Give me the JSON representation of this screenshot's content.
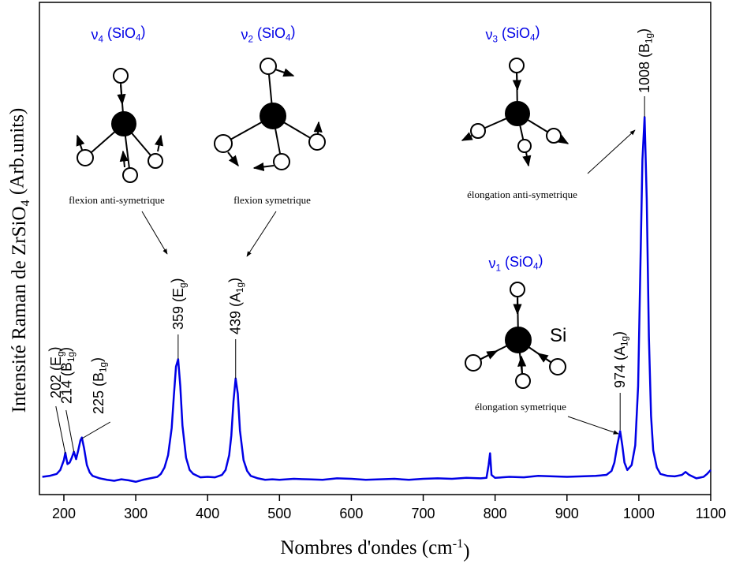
{
  "chart_data": {
    "type": "line",
    "xlabel": [
      "Nombres d'ondes (cm",
      {
        "sup": "-1"
      },
      ")"
    ],
    "ylabel": [
      "Intensité Raman de ZrSiO",
      {
        "sub": "4"
      },
      " (Arb.units)"
    ],
    "xlim": [
      166,
      1100
    ],
    "ylim": [
      0,
      100
    ],
    "xticks": [
      200,
      300,
      400,
      500,
      600,
      700,
      800,
      900,
      1000,
      1100
    ],
    "x": [
      170,
      180,
      190,
      195,
      200,
      202,
      205,
      208,
      211,
      214,
      217,
      220,
      223,
      225,
      228,
      232,
      236,
      240,
      250,
      260,
      270,
      280,
      290,
      300,
      310,
      320,
      330,
      335,
      340,
      345,
      350,
      353,
      356,
      359,
      362,
      365,
      370,
      375,
      380,
      390,
      400,
      410,
      420,
      425,
      430,
      433,
      436,
      439,
      442,
      445,
      450,
      455,
      460,
      470,
      480,
      490,
      500,
      520,
      540,
      560,
      580,
      600,
      620,
      640,
      660,
      680,
      700,
      720,
      740,
      760,
      780,
      788,
      791,
      793,
      795,
      800,
      820,
      840,
      860,
      880,
      900,
      920,
      940,
      955,
      962,
      966,
      970,
      974,
      977,
      980,
      984,
      990,
      995,
      999,
      1002,
      1005,
      1008,
      1011,
      1014,
      1017,
      1020,
      1025,
      1030,
      1040,
      1050,
      1060,
      1065,
      1070,
      1080,
      1090,
      1095,
      1100
    ],
    "series": [
      {
        "color": "#0000e6",
        "values": [
          3.6,
          3.8,
          4.2,
          5.0,
          7.0,
          8.5,
          6.2,
          6.5,
          7.5,
          8.7,
          7.2,
          9.0,
          11.0,
          11.6,
          9.5,
          6.0,
          4.5,
          3.8,
          3.3,
          3.0,
          2.8,
          3.1,
          2.9,
          2.6,
          3.0,
          3.3,
          3.6,
          4.2,
          5.5,
          8.0,
          13.5,
          20.0,
          26.0,
          27.5,
          22.0,
          14.0,
          7.5,
          5.0,
          4.2,
          3.5,
          3.6,
          3.5,
          4.0,
          5.0,
          8.0,
          12.0,
          19.0,
          23.6,
          20.5,
          13.0,
          7.0,
          4.8,
          3.8,
          3.3,
          3.0,
          3.1,
          3.0,
          3.2,
          3.1,
          3.0,
          3.3,
          3.2,
          3.0,
          3.1,
          3.2,
          3.0,
          3.2,
          3.3,
          3.2,
          3.4,
          3.3,
          3.4,
          6.0,
          8.4,
          4.0,
          3.4,
          3.6,
          3.5,
          3.8,
          3.7,
          3.6,
          3.7,
          3.8,
          4.0,
          4.8,
          6.5,
          10.0,
          12.9,
          10.0,
          6.5,
          5.0,
          6.0,
          10.0,
          22.0,
          45.0,
          68.0,
          76.7,
          60.0,
          32.0,
          16.0,
          9.0,
          5.5,
          4.2,
          3.8,
          3.7,
          4.0,
          4.6,
          4.0,
          3.3,
          3.6,
          4.2,
          5.0
        ]
      }
    ],
    "annotations": [
      {
        "x": 202,
        "label": [
          "202 (E",
          {
            "sub": "g"
          },
          ")"
        ]
      },
      {
        "x": 214,
        "label": [
          "214 (B",
          {
            "sub": "1g"
          },
          ")"
        ]
      },
      {
        "x": 225,
        "label": [
          "225 (B",
          {
            "sub": "1g"
          },
          ")"
        ]
      },
      {
        "x": 359,
        "label": [
          "359 (E",
          {
            "sub": "g"
          },
          ")"
        ]
      },
      {
        "x": 439,
        "label": [
          "439 (A",
          {
            "sub": "1g"
          },
          ")"
        ]
      },
      {
        "x": 974,
        "label": [
          "974 (A",
          {
            "sub": "1g"
          },
          ")"
        ]
      },
      {
        "x": 1008,
        "label": [
          "1008 (B",
          {
            "sub": "1g"
          },
          ")"
        ]
      }
    ],
    "insets": [
      {
        "mode": [
          "ν",
          {
            "sub": "4"
          },
          " (SiO",
          {
            "sub": "4"
          },
          ")"
        ],
        "caption": "flexion anti-symetrique"
      },
      {
        "mode": [
          "ν",
          {
            "sub": "2"
          },
          " (SiO",
          {
            "sub": "4"
          },
          ")"
        ],
        "caption": "flexion symetrique"
      },
      {
        "mode": [
          "ν",
          {
            "sub": "3"
          },
          " (SiO",
          {
            "sub": "4"
          },
          ")"
        ],
        "caption": "élongation anti-symetrique"
      },
      {
        "mode": [
          "ν",
          {
            "sub": "1"
          },
          " (SiO",
          {
            "sub": "4"
          },
          ")"
        ],
        "caption": "élongation symetrique",
        "atom": "Si"
      }
    ]
  }
}
